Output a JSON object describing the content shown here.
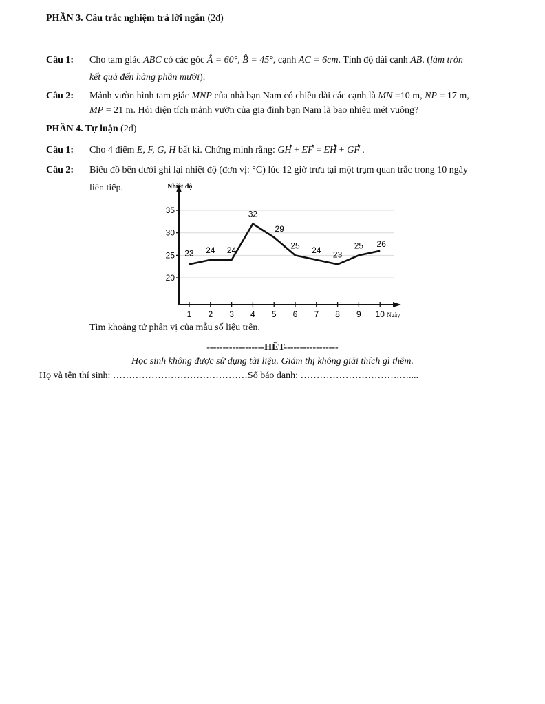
{
  "part3": {
    "title": "PHẦN 3. Câu trắc nghiệm trả lời ngắn",
    "points": "(2đ)"
  },
  "p3q1": {
    "label": "Câu 1:",
    "t1": "Cho tam giác ",
    "abc": "ABC",
    "t2": " có các góc ",
    "angles": "Â = 60°, B̂ = 45°",
    "t3": ", cạnh ",
    "ac": "AC = 6cm",
    "t4": ". Tính độ dài cạnh ",
    "ab": "AB",
    "t5": ". (",
    "note1": "làm tròn",
    "note2": "kết quả đến hàng phần mười",
    "t6": ")."
  },
  "p3q2": {
    "label": "Câu 2:",
    "line1a": "Mảnh vườn hình tam giác ",
    "mnp": "MNP",
    "line1b": " của nhà bạn Nam có chiều dài các cạnh là ",
    "mn": "MN",
    "line1c": " =10 m, ",
    "np": "NP",
    "line1d": " = 17 m,",
    "mp": "MP",
    "line2": " = 21 m. Hỏi diện tích mảnh vườn của gia đình bạn Nam là bao nhiêu mét vuông?"
  },
  "part4": {
    "title": "PHẦN 4. Tự luận",
    "points": "(2đ)"
  },
  "p4q1": {
    "label": "Câu 1:",
    "t1": "Cho 4 điểm ",
    "pts": "E, F, G, H",
    "t2": " bất kì. Chứng minh rằng: ",
    "v1": "GH",
    "plus1": " + ",
    "v2": "EF",
    "eq": " = ",
    "v3": "EH",
    "plus2": " + ",
    "v4": "GF",
    "end": " ."
  },
  "p4q2": {
    "label": "Câu 2:",
    "line1": "Biểu đồ bên dưới ghi lại nhiệt độ (đơn vị: °C) lúc 12 giờ trưa tại một trạm quan trắc trong 10 ngày",
    "line2": "liên tiếp.",
    "ask": "Tìm khoảng tứ phân vị của mẫu số liệu trên."
  },
  "chart_data": {
    "type": "line",
    "ylabel": "Nhiệt độ",
    "xlabel": "Ngày",
    "x": [
      1,
      2,
      3,
      4,
      5,
      6,
      7,
      8,
      9,
      10
    ],
    "values": [
      23,
      24,
      24,
      32,
      29,
      25,
      24,
      23,
      25,
      26
    ],
    "data_labels": [
      "23",
      "24",
      "24",
      "32",
      "29",
      "25",
      "24",
      "23",
      "25",
      "26"
    ],
    "yticks": [
      20,
      25,
      30,
      35
    ],
    "ylim": [
      15,
      37
    ],
    "xlim": [
      0.5,
      11
    ],
    "grid": true,
    "line_color": "#111111",
    "grid_color": "#d9d9d9"
  },
  "footer": {
    "end": "------------------HẾT-----------------",
    "note": "Học sinh không được sử dụng tài liệu. Giám thị không giải thích gì thêm.",
    "name": "Họ và tên thí sinh: ……………………………………Số báo danh: ………………………….…...."
  }
}
